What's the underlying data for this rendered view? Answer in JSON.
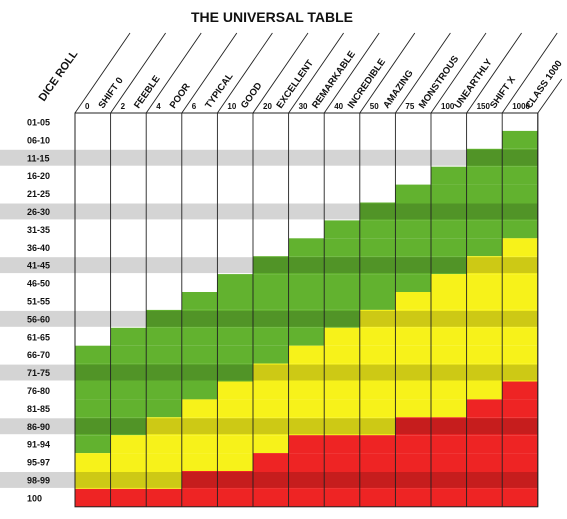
{
  "chart_data": {
    "type": "heatmap",
    "title": "THE UNIVERSAL TABLE",
    "row_axis_label": "DICE ROLL",
    "columns": [
      {
        "name": "SHIFT 0",
        "value": "0"
      },
      {
        "name": "FEEBLE",
        "value": "2"
      },
      {
        "name": "POOR",
        "value": "4"
      },
      {
        "name": "TYPICAL",
        "value": "6"
      },
      {
        "name": "GOOD",
        "value": "10"
      },
      {
        "name": "EXCELLENT",
        "value": "20"
      },
      {
        "name": "REMARKABLE",
        "value": "30"
      },
      {
        "name": "INCREDIBLE",
        "value": "40"
      },
      {
        "name": "AMAZING",
        "value": "50"
      },
      {
        "name": "MONSTROUS",
        "value": "75"
      },
      {
        "name": "UNEARTHLY",
        "value": "100"
      },
      {
        "name": "SHIFT X",
        "value": "150"
      },
      {
        "name": "CLASS 1000",
        "value": "1000"
      }
    ],
    "rows": [
      "01-05",
      "06-10",
      "11-15",
      "16-20",
      "21-25",
      "26-30",
      "31-35",
      "36-40",
      "41-45",
      "46-50",
      "51-55",
      "56-60",
      "61-65",
      "66-70",
      "71-75",
      "76-80",
      "81-85",
      "86-90",
      "91-94",
      "95-97",
      "98-99",
      "100"
    ],
    "shaded_rows": [
      "11-15",
      "26-30",
      "41-45",
      "56-60",
      "71-75",
      "86-90",
      "98-99"
    ],
    "legend_colors": {
      "white": "#ffffff",
      "green": "#62b22f",
      "yellow": "#f7f21a",
      "red": "#ee2424"
    },
    "thresholds_row_index": {
      "description_green_yellow_red_start_rows": "",
      "green": [
        13,
        12,
        11,
        10,
        9,
        8,
        7,
        6,
        5,
        4,
        3,
        2,
        1
      ],
      "yellow": [
        19,
        18,
        17,
        16,
        15,
        14,
        13,
        12,
        11,
        10,
        9,
        8,
        7
      ],
      "red": [
        21,
        21,
        21,
        20,
        20,
        19,
        18,
        18,
        18,
        17,
        17,
        16,
        15
      ]
    }
  }
}
